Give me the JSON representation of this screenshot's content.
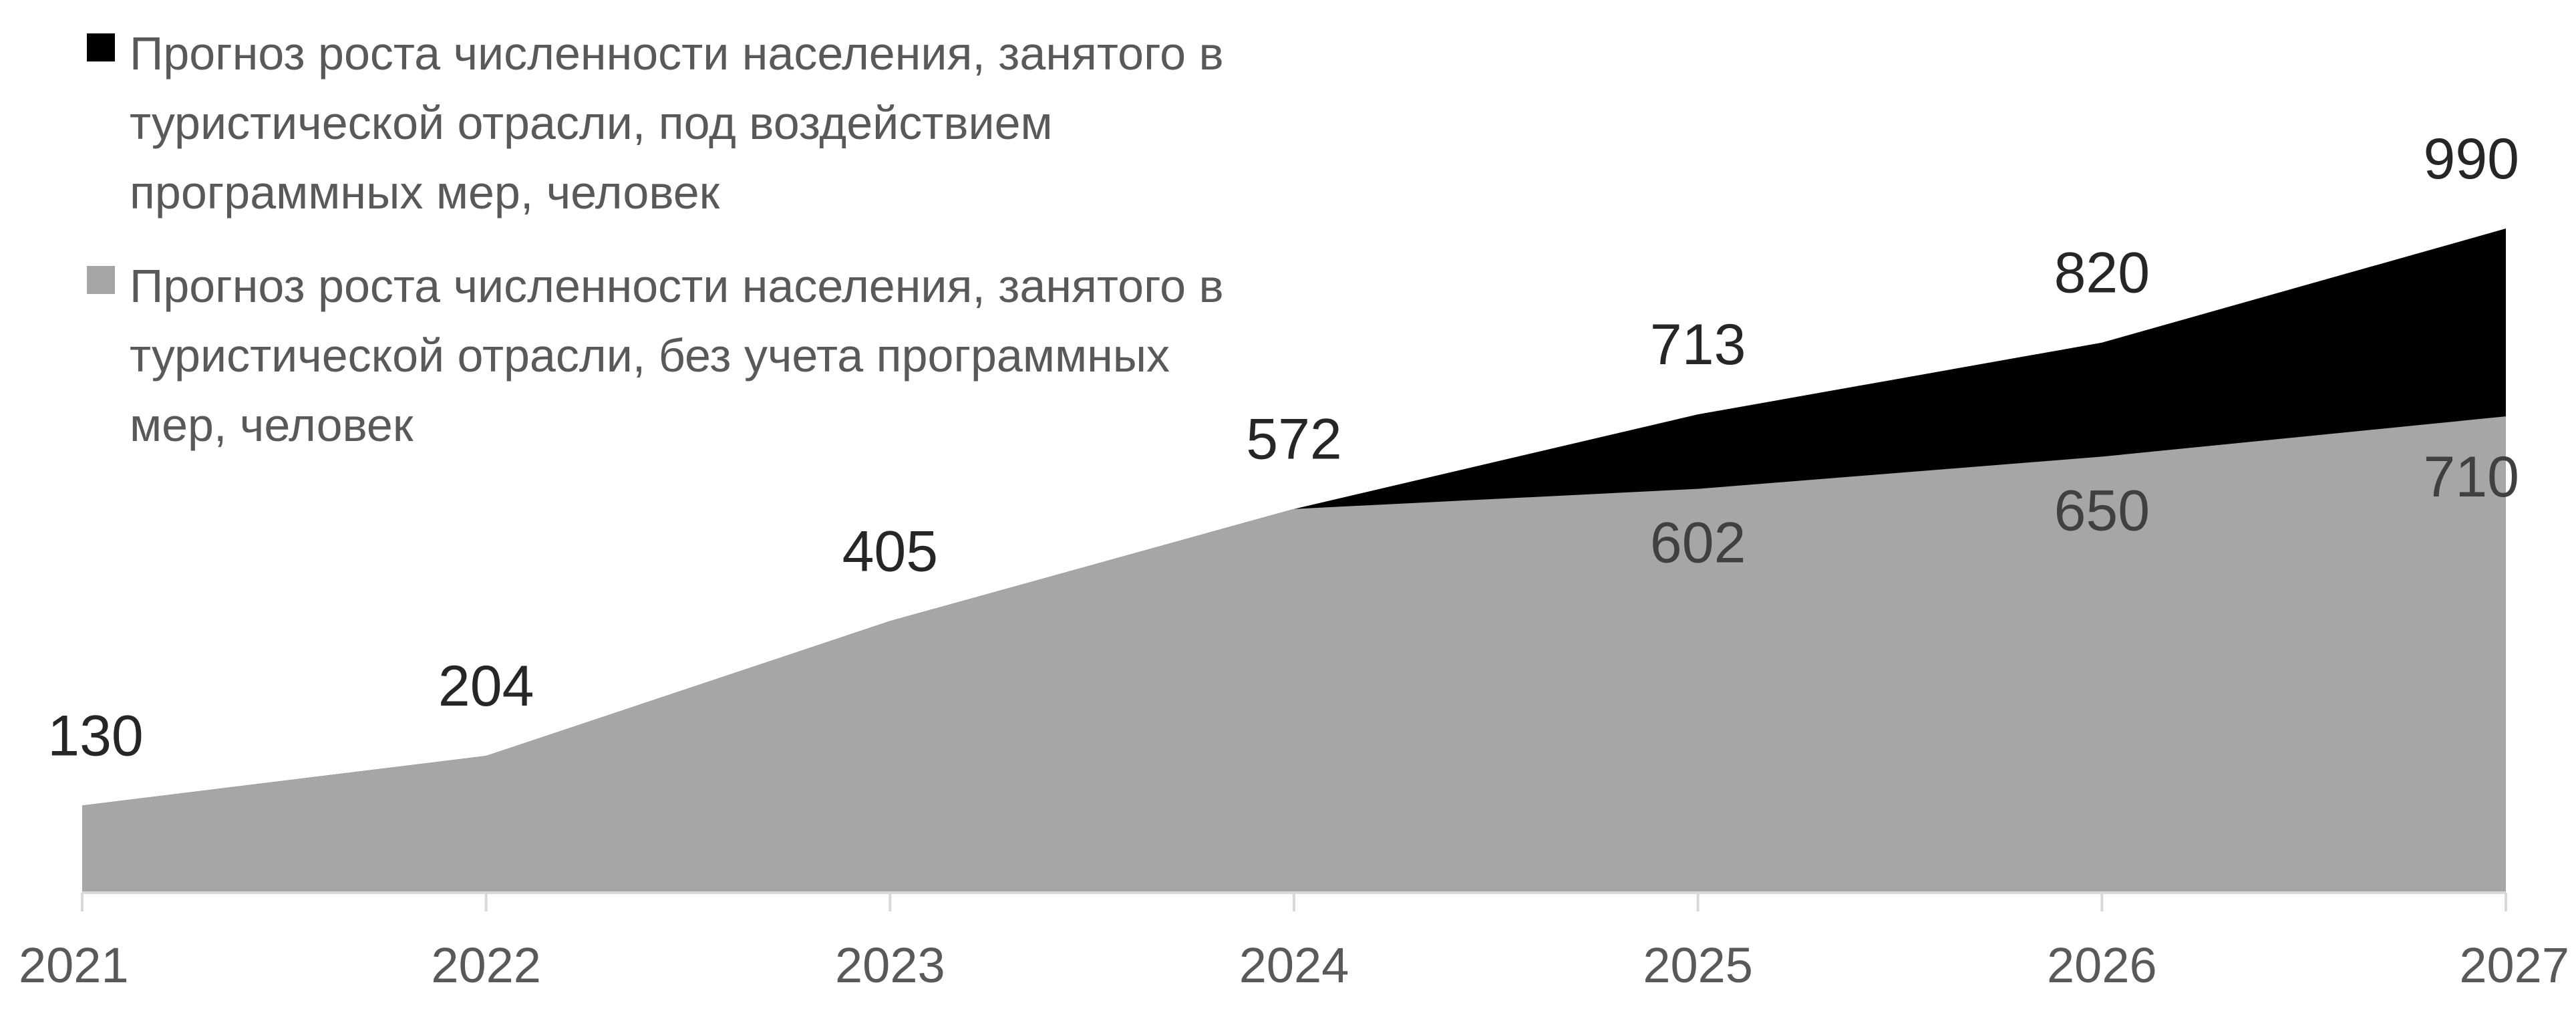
{
  "chart_data": {
    "type": "area",
    "categories": [
      "2021",
      "2022",
      "2023",
      "2024",
      "2025",
      "2026",
      "2027"
    ],
    "series": [
      {
        "name": "Прогноз роста численности населения, занятого в туристической отрасли, под воздействием программных мер, человек",
        "color": "#000000",
        "values": [
          130,
          204,
          405,
          572,
          713,
          820,
          990
        ]
      },
      {
        "name": "Прогноз роста численности населения, занятого в туристической отрасли, без учета программных мер, человек",
        "color": "#a6a6a6",
        "values": [
          130,
          204,
          405,
          572,
          602,
          650,
          710
        ]
      }
    ],
    "ylim": [
      0,
      1000
    ],
    "legend": "top-left"
  }
}
